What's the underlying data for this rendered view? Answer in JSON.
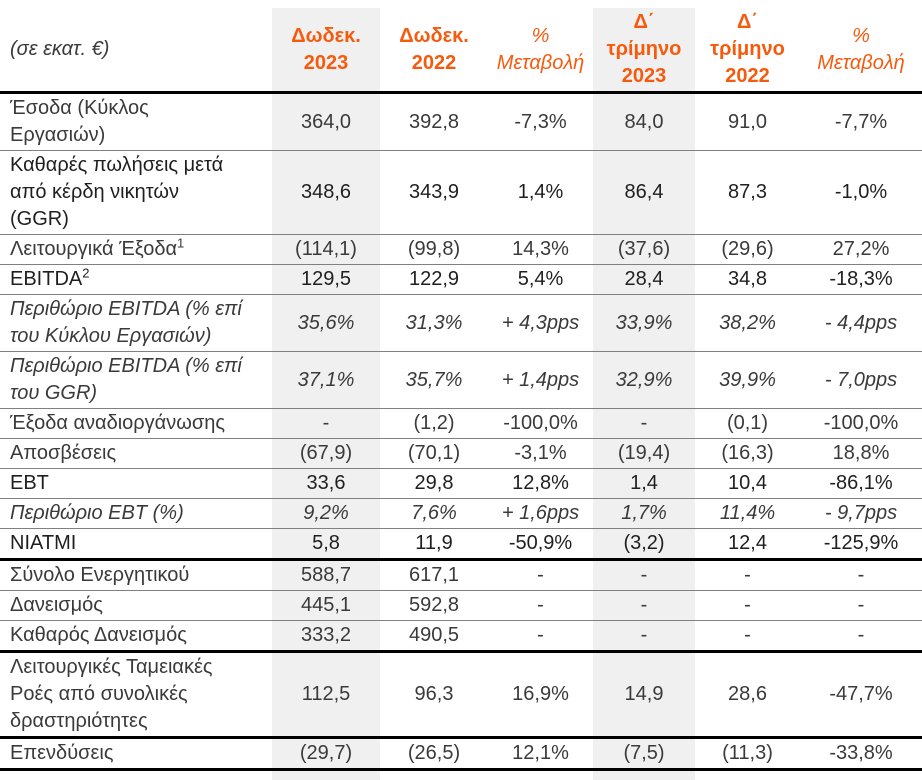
{
  "theme": {
    "accent_orange": "#F65A0D",
    "highlight_gray": "#F0F0F0",
    "text_dark": "#3A3A3A",
    "thin_rule": "#808080",
    "thick_rule": "#000000"
  },
  "table": {
    "unit_label": "(σε εκατ. €)",
    "columns": [
      {
        "label": "Δωδεκ.\n2023",
        "style": "bold",
        "highlight": true
      },
      {
        "label": "Δωδεκ.\n2022",
        "style": "bold",
        "highlight": false
      },
      {
        "label": "%\nΜεταβολή",
        "style": "italic",
        "highlight": false
      },
      {
        "label": "Δ΄\nτρίμηνο\n2023",
        "style": "bold",
        "highlight": true
      },
      {
        "label": "Δ΄\nτρίμηνο\n2022",
        "style": "bold",
        "highlight": false
      },
      {
        "label": "%\nΜεταβολή",
        "style": "italic",
        "highlight": false
      }
    ],
    "rows": [
      {
        "label": "Έσοδα (Κύκλος\nΕργασιών)",
        "values": [
          "364,0",
          "392,8",
          "-7,3%",
          "84,0",
          "91,0",
          "-7,7%"
        ],
        "emphasis": "normal",
        "border": "thin"
      },
      {
        "label": "Καθαρές πωλήσεις μετά\nαπό κέρδη νικητών\n(GGR)",
        "values": [
          "348,6",
          "343,9",
          "1,4%",
          "86,4",
          "87,3",
          "-1,0%"
        ],
        "emphasis": "bold",
        "border": "thin"
      },
      {
        "label": "Λειτουργικά Έξοδα",
        "sup": "1",
        "values": [
          "(114,1)",
          "(99,8)",
          "14,3%",
          "(37,6)",
          "(29,6)",
          "27,2%"
        ],
        "emphasis": "normal",
        "border": "thin"
      },
      {
        "label": "EBITDA",
        "sup": "2",
        "values": [
          "129,5",
          "122,9",
          "5,4%",
          "28,4",
          "34,8",
          "-18,3%"
        ],
        "emphasis": "bold",
        "border": "thin"
      },
      {
        "label": "Περιθώριο EBITDA (% επί\nτου Κύκλου Εργασιών)",
        "values": [
          "35,6%",
          "31,3%",
          "+ 4,3pps",
          "33,9%",
          "38,2%",
          "- 4,4pps"
        ],
        "emphasis": "italic",
        "border": "thin"
      },
      {
        "label": "Περιθώριο EBITDA (% επί\nτου GGR)",
        "values": [
          "37,1%",
          "35,7%",
          "+ 1,4pps",
          "32,9%",
          "39,9%",
          "- 7,0pps"
        ],
        "emphasis": "italic",
        "border": "thin"
      },
      {
        "label": "Έξοδα αναδιοργάνωσης",
        "values": [
          "-",
          "(1,2)",
          "-100,0%",
          "-",
          "(0,1)",
          "-100,0%"
        ],
        "emphasis": "normal",
        "border": "thin"
      },
      {
        "label": "Αποσβέσεις",
        "values": [
          "(67,9)",
          "(70,1)",
          "-3,1%",
          "(19,4)",
          "(16,3)",
          "18,8%"
        ],
        "emphasis": "normal",
        "border": "thin"
      },
      {
        "label": "EBT",
        "values": [
          "33,6",
          "29,8",
          "12,8%",
          "1,4",
          "10,4",
          "-86,1%"
        ],
        "emphasis": "bold",
        "border": "thin"
      },
      {
        "label": "Περιθώριο EBT (%)",
        "values": [
          "9,2%",
          "7,6%",
          "+ 1,6pps",
          "1,7%",
          "11,4%",
          "- 9,7pps"
        ],
        "emphasis": "italic",
        "border": "thin"
      },
      {
        "label": "NIATMI",
        "values": [
          "5,8",
          "11,9",
          "-50,9%",
          "(3,2)",
          "12,4",
          "-125,9%"
        ],
        "emphasis": "bold",
        "border": "thick"
      },
      {
        "label": "Σύνολο Ενεργητικού",
        "values": [
          "588,7",
          "617,1",
          "-",
          "-",
          "-",
          "-"
        ],
        "emphasis": "normal",
        "border": "thin"
      },
      {
        "label": "Δανεισμός",
        "values": [
          "445,1",
          "592,8",
          "-",
          "-",
          "-",
          "-"
        ],
        "emphasis": "normal",
        "border": "thin"
      },
      {
        "label": "Καθαρός Δανεισμός",
        "values": [
          "333,2",
          "490,5",
          "-",
          "-",
          "-",
          "-"
        ],
        "emphasis": "normal",
        "border": "thick"
      },
      {
        "label": "Λειτουργικές Ταμειακές\nΡοές από συνολικές\nδραστηριότητες",
        "values": [
          "112,5",
          "96,3",
          "16,9%",
          "14,9",
          "28,6",
          "-47,7%"
        ],
        "emphasis": "normal",
        "border": "thick"
      },
      {
        "label": "Επενδύσεις",
        "values": [
          "(29,7)",
          "(26,5)",
          "12,1%",
          "(7,5)",
          "(11,3)",
          "-33,8%"
        ],
        "emphasis": "normal",
        "border": "thick"
      }
    ]
  }
}
